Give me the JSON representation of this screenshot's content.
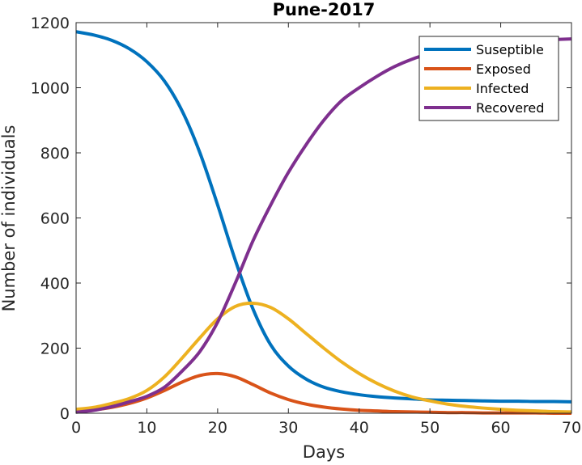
{
  "chart_data": {
    "type": "line",
    "title": "Pune-2017",
    "xlabel": "Days",
    "ylabel": "Number of individuals",
    "xlim": [
      0,
      70
    ],
    "ylim": [
      0,
      1200
    ],
    "x_ticks": [
      0,
      10,
      20,
      30,
      40,
      50,
      60,
      70
    ],
    "y_ticks": [
      0,
      200,
      400,
      600,
      800,
      1000,
      1200
    ],
    "grid": false,
    "legend_position": "top-right",
    "x": [
      0,
      2.5,
      5,
      7.5,
      10,
      12.5,
      15,
      17.5,
      20,
      22.5,
      25,
      27.5,
      30,
      32.5,
      35,
      37.5,
      40,
      42.5,
      45,
      47.5,
      50,
      52.5,
      55,
      57.5,
      60,
      62.5,
      65,
      67.5,
      70
    ],
    "series": [
      {
        "name": "Suseptible",
        "color": "#0072BD",
        "values": [
          1172,
          1162,
          1146,
          1120,
          1080,
          1020,
          928,
          800,
          640,
          470,
          320,
          210,
          145,
          105,
          80,
          66,
          57,
          51,
          47,
          44,
          41,
          40,
          39,
          38,
          37,
          37,
          36,
          36,
          35
        ]
      },
      {
        "name": "Exposed",
        "color": "#D95319",
        "values": [
          5,
          10,
          18,
          30,
          47,
          70,
          96,
          116,
          122,
          112,
          88,
          62,
          42,
          28,
          19,
          13,
          9,
          7,
          5,
          4,
          3,
          2,
          2,
          1,
          1,
          1,
          1,
          0,
          0
        ]
      },
      {
        "name": "Infected",
        "color": "#EDB120",
        "values": [
          12,
          18,
          30,
          45,
          70,
          112,
          170,
          232,
          290,
          328,
          338,
          325,
          290,
          245,
          200,
          158,
          122,
          92,
          68,
          50,
          38,
          28,
          21,
          16,
          12,
          9,
          7,
          5,
          4
        ]
      },
      {
        "name": "Recovered",
        "color": "#7E2F8E",
        "values": [
          3,
          9,
          20,
          35,
          52,
          80,
          130,
          190,
          280,
          400,
          530,
          640,
          740,
          825,
          900,
          960,
          1000,
          1035,
          1065,
          1088,
          1105,
          1118,
          1128,
          1135,
          1140,
          1143,
          1146,
          1148,
          1150
        ]
      }
    ]
  }
}
